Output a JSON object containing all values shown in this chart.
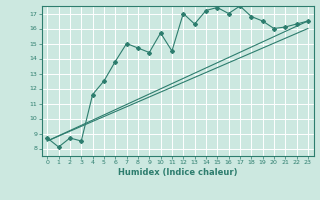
{
  "title": "",
  "xlabel": "Humidex (Indice chaleur)",
  "bg_color": "#cce8e0",
  "grid_color": "#ffffff",
  "line_color": "#2d7d6e",
  "xlim": [
    -0.5,
    23.5
  ],
  "ylim": [
    7.5,
    17.5
  ],
  "yticks": [
    8,
    9,
    10,
    11,
    12,
    13,
    14,
    15,
    16,
    17
  ],
  "xticks": [
    0,
    1,
    2,
    3,
    4,
    5,
    6,
    7,
    8,
    9,
    10,
    11,
    12,
    13,
    14,
    15,
    16,
    17,
    18,
    19,
    20,
    21,
    22,
    23
  ],
  "series1_x": [
    0,
    1,
    2,
    3,
    4,
    5,
    6,
    7,
    8,
    9,
    10,
    11,
    12,
    13,
    14,
    15,
    16,
    17,
    18,
    19,
    20,
    21,
    22,
    23
  ],
  "series1_y": [
    8.7,
    8.1,
    8.7,
    8.5,
    11.6,
    12.5,
    13.8,
    15.0,
    14.7,
    14.4,
    15.7,
    14.5,
    17.0,
    16.3,
    17.2,
    17.4,
    17.0,
    17.5,
    16.8,
    16.5,
    16.0,
    16.1,
    16.3,
    16.5
  ],
  "series2_x": [
    0,
    23
  ],
  "series2_y": [
    8.5,
    16.5
  ],
  "series3_x": [
    0,
    23
  ],
  "series3_y": [
    8.5,
    16.0
  ]
}
